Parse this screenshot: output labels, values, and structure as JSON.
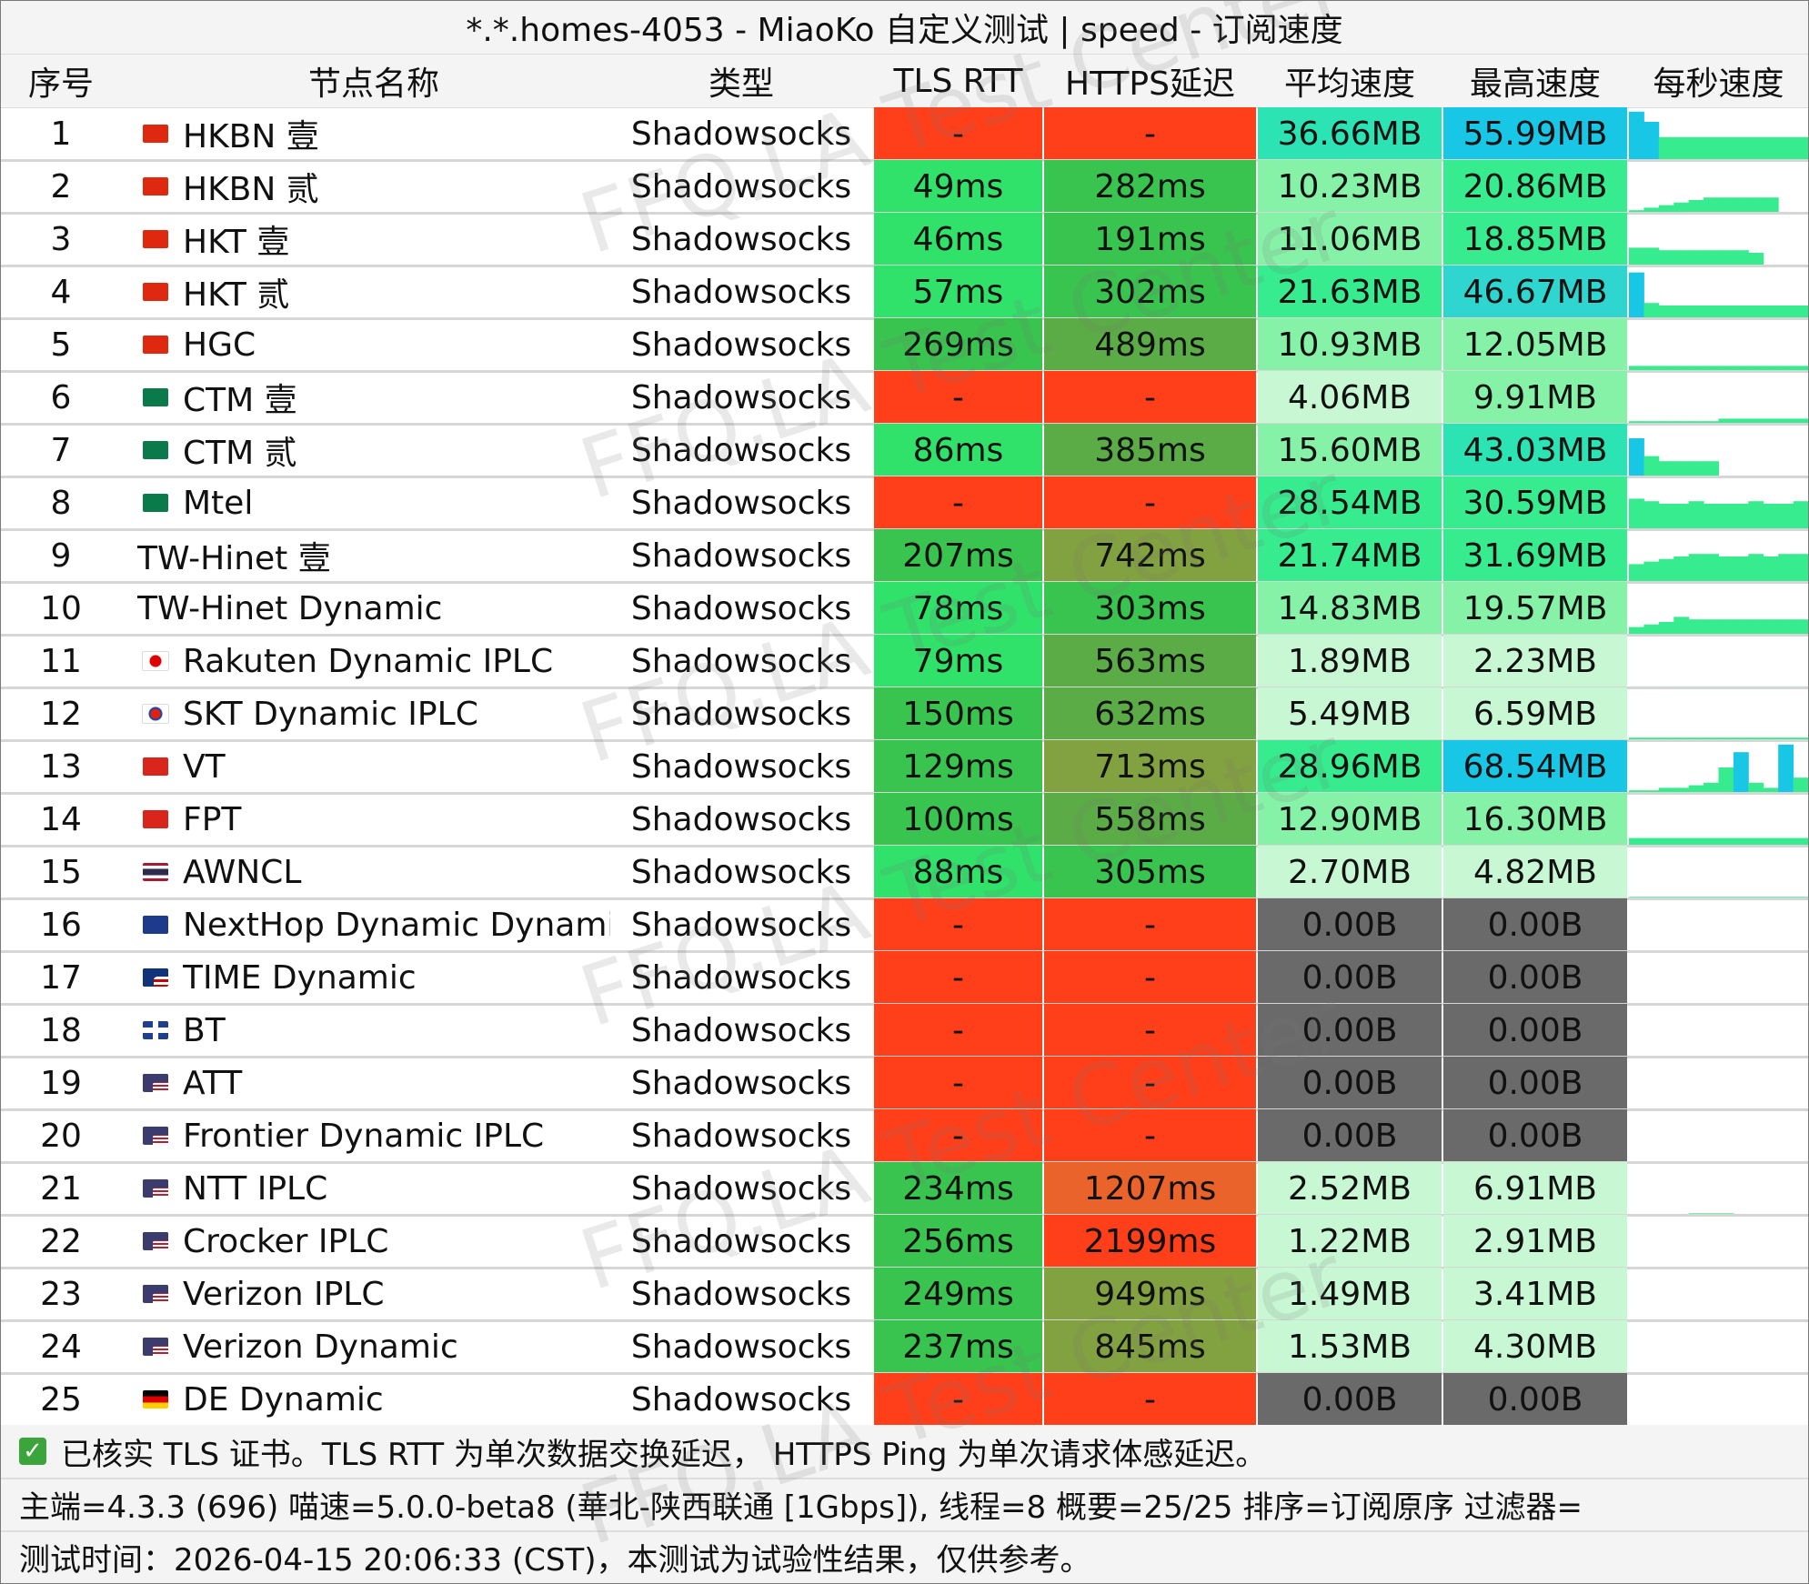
{
  "title": "*.*.homes-4053 - MiaoKo 自定义测试 | speed - 订阅速度",
  "watermark": "FFQ.LA Test Center",
  "headers": {
    "idx": "序号",
    "name": "节点名称",
    "type": "类型",
    "tls": "TLS RTT",
    "https": "HTTPS延迟",
    "avg": "平均速度",
    "max": "最高速度",
    "spark": "每秒速度"
  },
  "colors": {
    "fail": "#ff3f1a",
    "none": "#6a6a6a",
    "https_slow": "#e9632a",
    "rtt_good": "#30e26a",
    "rtt_mid": "#38c44e",
    "https_mid": "#5bac46",
    "https_olive": "#82a140",
    "speed_light": "#c7f7d3",
    "speed_mid": "#86f2a8",
    "speed_green": "#36ec8e",
    "speed_teal": "#2be3b3",
    "speed_blue": "#18c6e6",
    "speed_cyan": "#2fd6cf"
  },
  "rows": [
    {
      "idx": "1",
      "flag": "hk",
      "name": "HKBN 壹",
      "type": "Shadowsocks",
      "tls": "-",
      "https": "-",
      "avg": "36.66MB",
      "max": "55.99MB",
      "tls_c": "fail",
      "https_c": "fail",
      "avg_c": "speed_teal",
      "max_c": "speed_blue",
      "spark": "s1"
    },
    {
      "idx": "2",
      "flag": "hk",
      "name": "HKBN 贰",
      "type": "Shadowsocks",
      "tls": "49ms",
      "https": "282ms",
      "avg": "10.23MB",
      "max": "20.86MB",
      "tls_c": "rtt_good",
      "https_c": "rtt_mid",
      "avg_c": "speed_mid",
      "max_c": "speed_green",
      "spark": "s2"
    },
    {
      "idx": "3",
      "flag": "hk",
      "name": "HKT 壹",
      "type": "Shadowsocks",
      "tls": "46ms",
      "https": "191ms",
      "avg": "11.06MB",
      "max": "18.85MB",
      "tls_c": "rtt_good",
      "https_c": "rtt_mid",
      "avg_c": "speed_mid",
      "max_c": "speed_green",
      "spark": "s3"
    },
    {
      "idx": "4",
      "flag": "hk",
      "name": "HKT 贰",
      "type": "Shadowsocks",
      "tls": "57ms",
      "https": "302ms",
      "avg": "21.63MB",
      "max": "46.67MB",
      "tls_c": "rtt_good",
      "https_c": "rtt_mid",
      "avg_c": "speed_green",
      "max_c": "speed_cyan",
      "spark": "s4"
    },
    {
      "idx": "5",
      "flag": "hk",
      "name": "HGC",
      "type": "Shadowsocks",
      "tls": "269ms",
      "https": "489ms",
      "avg": "10.93MB",
      "max": "12.05MB",
      "tls_c": "rtt_mid",
      "https_c": "https_mid",
      "avg_c": "speed_mid",
      "max_c": "speed_mid",
      "spark": "s5"
    },
    {
      "idx": "6",
      "flag": "mo",
      "name": "CTM 壹",
      "type": "Shadowsocks",
      "tls": "-",
      "https": "-",
      "avg": "4.06MB",
      "max": "9.91MB",
      "tls_c": "fail",
      "https_c": "fail",
      "avg_c": "speed_light",
      "max_c": "speed_mid",
      "spark": "s6"
    },
    {
      "idx": "7",
      "flag": "mo",
      "name": "CTM 贰",
      "type": "Shadowsocks",
      "tls": "86ms",
      "https": "385ms",
      "avg": "15.60MB",
      "max": "43.03MB",
      "tls_c": "rtt_good",
      "https_c": "https_mid",
      "avg_c": "speed_mid",
      "max_c": "speed_teal",
      "spark": "s7"
    },
    {
      "idx": "8",
      "flag": "mo",
      "name": "Mtel",
      "type": "Shadowsocks",
      "tls": "-",
      "https": "-",
      "avg": "28.54MB",
      "max": "30.59MB",
      "tls_c": "fail",
      "https_c": "fail",
      "avg_c": "speed_green",
      "max_c": "speed_green",
      "spark": "s8"
    },
    {
      "idx": "9",
      "flag": "",
      "name": "TW-Hinet 壹",
      "type": "Shadowsocks",
      "tls": "207ms",
      "https": "742ms",
      "avg": "21.74MB",
      "max": "31.69MB",
      "tls_c": "rtt_mid",
      "https_c": "https_olive",
      "avg_c": "speed_green",
      "max_c": "speed_green",
      "spark": "s9"
    },
    {
      "idx": "10",
      "flag": "",
      "name": "TW-Hinet Dynamic",
      "type": "Shadowsocks",
      "tls": "78ms",
      "https": "303ms",
      "avg": "14.83MB",
      "max": "19.57MB",
      "tls_c": "rtt_good",
      "https_c": "rtt_mid",
      "avg_c": "speed_mid",
      "max_c": "speed_mid",
      "spark": "s10"
    },
    {
      "idx": "11",
      "flag": "jp",
      "name": "Rakuten Dynamic IPLC",
      "type": "Shadowsocks",
      "tls": "79ms",
      "https": "563ms",
      "avg": "1.89MB",
      "max": "2.23MB",
      "tls_c": "rtt_good",
      "https_c": "https_mid",
      "avg_c": "speed_light",
      "max_c": "speed_light",
      "spark": "s11"
    },
    {
      "idx": "12",
      "flag": "kr",
      "name": "SKT Dynamic IPLC",
      "type": "Shadowsocks",
      "tls": "150ms",
      "https": "632ms",
      "avg": "5.49MB",
      "max": "6.59MB",
      "tls_c": "rtt_mid",
      "https_c": "https_mid",
      "avg_c": "speed_light",
      "max_c": "speed_light",
      "spark": "s12"
    },
    {
      "idx": "13",
      "flag": "vn",
      "name": "VT",
      "type": "Shadowsocks",
      "tls": "129ms",
      "https": "713ms",
      "avg": "28.96MB",
      "max": "68.54MB",
      "tls_c": "rtt_mid",
      "https_c": "https_olive",
      "avg_c": "speed_green",
      "max_c": "speed_blue",
      "spark": "s13"
    },
    {
      "idx": "14",
      "flag": "vn",
      "name": "FPT",
      "type": "Shadowsocks",
      "tls": "100ms",
      "https": "558ms",
      "avg": "12.90MB",
      "max": "16.30MB",
      "tls_c": "rtt_mid",
      "https_c": "https_mid",
      "avg_c": "speed_mid",
      "max_c": "speed_mid",
      "spark": "s14"
    },
    {
      "idx": "15",
      "flag": "th",
      "name": "AWNCL",
      "type": "Shadowsocks",
      "tls": "88ms",
      "https": "305ms",
      "avg": "2.70MB",
      "max": "4.82MB",
      "tls_c": "rtt_good",
      "https_c": "rtt_mid",
      "avg_c": "speed_light",
      "max_c": "speed_light",
      "spark": "s15"
    },
    {
      "idx": "16",
      "flag": "au",
      "name": "NextHop Dynamic Dynamic",
      "type": "Shadowsocks",
      "tls": "-",
      "https": "-",
      "avg": "0.00B",
      "max": "0.00B",
      "tls_c": "fail",
      "https_c": "fail",
      "avg_c": "none",
      "max_c": "none",
      "spark": ""
    },
    {
      "idx": "17",
      "flag": "my",
      "name": "TIME Dynamic",
      "type": "Shadowsocks",
      "tls": "-",
      "https": "-",
      "avg": "0.00B",
      "max": "0.00B",
      "tls_c": "fail",
      "https_c": "fail",
      "avg_c": "none",
      "max_c": "none",
      "spark": ""
    },
    {
      "idx": "18",
      "flag": "gb",
      "name": "BT",
      "type": "Shadowsocks",
      "tls": "-",
      "https": "-",
      "avg": "0.00B",
      "max": "0.00B",
      "tls_c": "fail",
      "https_c": "fail",
      "avg_c": "none",
      "max_c": "none",
      "spark": ""
    },
    {
      "idx": "19",
      "flag": "us",
      "name": "ATT",
      "type": "Shadowsocks",
      "tls": "-",
      "https": "-",
      "avg": "0.00B",
      "max": "0.00B",
      "tls_c": "fail",
      "https_c": "fail",
      "avg_c": "none",
      "max_c": "none",
      "spark": ""
    },
    {
      "idx": "20",
      "flag": "us",
      "name": "Frontier Dynamic IPLC",
      "type": "Shadowsocks",
      "tls": "-",
      "https": "-",
      "avg": "0.00B",
      "max": "0.00B",
      "tls_c": "fail",
      "https_c": "fail",
      "avg_c": "none",
      "max_c": "none",
      "spark": ""
    },
    {
      "idx": "21",
      "flag": "us",
      "name": "NTT IPLC",
      "type": "Shadowsocks",
      "tls": "234ms",
      "https": "1207ms",
      "avg": "2.52MB",
      "max": "6.91MB",
      "tls_c": "rtt_mid",
      "https_c": "https_slow",
      "avg_c": "speed_light",
      "max_c": "speed_light",
      "spark": "s21"
    },
    {
      "idx": "22",
      "flag": "us",
      "name": "Crocker IPLC",
      "type": "Shadowsocks",
      "tls": "256ms",
      "https": "2199ms",
      "avg": "1.22MB",
      "max": "2.91MB",
      "tls_c": "rtt_mid",
      "https_c": "fail",
      "avg_c": "speed_light",
      "max_c": "speed_light",
      "spark": ""
    },
    {
      "idx": "23",
      "flag": "us",
      "name": "Verizon IPLC",
      "type": "Shadowsocks",
      "tls": "249ms",
      "https": "949ms",
      "avg": "1.49MB",
      "max": "3.41MB",
      "tls_c": "rtt_mid",
      "https_c": "https_olive",
      "avg_c": "speed_light",
      "max_c": "speed_light",
      "spark": ""
    },
    {
      "idx": "24",
      "flag": "us",
      "name": "Verizon Dynamic",
      "type": "Shadowsocks",
      "tls": "237ms",
      "https": "845ms",
      "avg": "1.53MB",
      "max": "4.30MB",
      "tls_c": "rtt_mid",
      "https_c": "https_olive",
      "avg_c": "speed_light",
      "max_c": "speed_light",
      "spark": ""
    },
    {
      "idx": "25",
      "flag": "de",
      "name": "DE Dynamic",
      "type": "Shadowsocks",
      "tls": "-",
      "https": "-",
      "avg": "0.00B",
      "max": "0.00B",
      "tls_c": "fail",
      "https_c": "fail",
      "avg_c": "none",
      "max_c": "none",
      "spark": ""
    }
  ],
  "sparklines": {
    "s1": [
      0.95,
      0.75,
      0.45,
      0.45,
      0.45,
      0.45,
      0.45,
      0.45,
      0.45,
      0.45,
      0.45,
      0.45
    ],
    "s2": [
      0.05,
      0.1,
      0.15,
      0.2,
      0.25,
      0.3,
      0.3,
      0.3,
      0.3,
      0.3,
      0.0,
      0.0
    ],
    "s3": [
      0.35,
      0.35,
      0.3,
      0.3,
      0.3,
      0.3,
      0.3,
      0.3,
      0.25,
      0.0,
      0.0,
      0.0
    ],
    "s4": [
      0.9,
      0.3,
      0.25,
      0.25,
      0.25,
      0.25,
      0.25,
      0.25,
      0.25,
      0.25,
      0.25,
      0.25
    ],
    "s5": [
      0.1,
      0.1,
      0.1,
      0.1,
      0.1,
      0.1,
      0.1,
      0.1,
      0.1,
      0.1,
      0.1,
      0.1
    ],
    "s6": [
      0.05,
      0.05,
      0.05,
      0.05,
      0.05,
      0.05,
      0.1,
      0.1,
      0.1,
      0.1,
      0.1,
      0.1
    ],
    "s7": [
      0.75,
      0.4,
      0.3,
      0.3,
      0.3,
      0.3,
      0.0,
      0.0,
      0.0,
      0.0,
      0.0,
      0.0
    ],
    "s8": [
      0.6,
      0.55,
      0.5,
      0.5,
      0.55,
      0.5,
      0.5,
      0.5,
      0.55,
      0.5,
      0.5,
      0.55
    ],
    "s9": [
      0.35,
      0.4,
      0.45,
      0.5,
      0.55,
      0.55,
      0.5,
      0.5,
      0.55,
      0.5,
      0.55,
      0.55
    ],
    "s10": [
      0.15,
      0.2,
      0.25,
      0.35,
      0.3,
      0.3,
      0.3,
      0.3,
      0.3,
      0.3,
      0.3,
      0.3
    ],
    "s11": [
      0.02,
      0.02,
      0.02,
      0.02,
      0.02,
      0.02,
      0.02,
      0.02,
      0.02,
      0.02,
      0.02,
      0.02
    ],
    "s12": [
      0.05,
      0.05,
      0.05,
      0.05,
      0.05,
      0.05,
      0.05,
      0.05,
      0.05,
      0.05,
      0.05,
      0.05
    ],
    "s13": [
      0.05,
      0.05,
      0.1,
      0.1,
      0.15,
      0.2,
      0.5,
      0.8,
      0.2,
      0.1,
      0.95,
      0.3
    ],
    "s14": [
      0.15,
      0.15,
      0.15,
      0.15,
      0.15,
      0.15,
      0.15,
      0.15,
      0.15,
      0.15,
      0.15,
      0.15
    ],
    "s15": [
      0.03,
      0.03,
      0.03,
      0.03,
      0.03,
      0.03,
      0.03,
      0.03,
      0.03,
      0.03,
      0.03,
      0.03
    ],
    "s21": [
      0.0,
      0.0,
      0.0,
      0.0,
      0.03,
      0.03,
      0.03,
      0.0,
      0.0,
      0.0,
      0.0,
      0.0
    ]
  },
  "footer": {
    "line1": "已核实 TLS 证书。TLS RTT 为单次数据交换延迟， HTTPS Ping 为单次请求体感延迟。",
    "line2": "主端=4.3.3 (696) 喵速=5.0.0-beta8 (華北-陕西联通 [1Gbps]), 线程=8 概要=25/25 排序=订阅原序 过滤器=",
    "line3": "测试时间：2026-04-15 20:06:33 (CST)，本测试为试验性结果，仅供参考。",
    "check_icon": "check-icon"
  }
}
